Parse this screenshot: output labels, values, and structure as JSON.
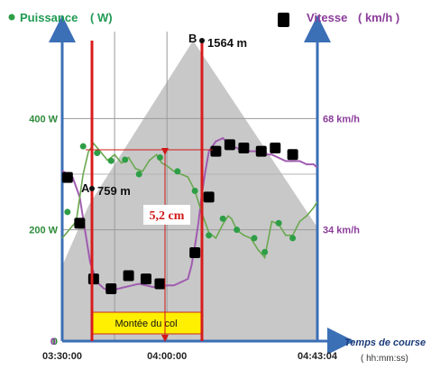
{
  "chart_data": {
    "type": "line",
    "title": "",
    "xlabel": "Temps de course",
    "xlabel_unit": "( hh:mm:ss)",
    "x_ticks": [
      "03:30:00",
      "04:00:00",
      "04:43:04"
    ],
    "x_tick_minutes": [
      0,
      30,
      73.07
    ],
    "xlim_minutes": [
      0,
      73.07
    ],
    "left_axis": {
      "label": "Puissance",
      "unit": "( W)",
      "ticks": [
        "0",
        "200 W",
        "400 W"
      ],
      "tick_values": [
        0,
        200,
        400
      ],
      "ylim": [
        0,
        540
      ],
      "color": "#2e9e46"
    },
    "right_axis": {
      "label": "Vitesse",
      "unit": "( km/h )",
      "ticks": [
        "0",
        "34 km/h",
        "68 km/h"
      ],
      "tick_values": [
        0,
        34,
        68
      ],
      "ylim": [
        0,
        91.8
      ],
      "color": "#8b3c9b"
    },
    "series": [
      {
        "name": "Puissance",
        "axis": "left",
        "color": "#6aa84f",
        "x": [
          0,
          2,
          4,
          6,
          7.5,
          9,
          11,
          13,
          15,
          17,
          19,
          21,
          23,
          25,
          27,
          28.5,
          30,
          32,
          34,
          36,
          38,
          40,
          42,
          44,
          46,
          47.5,
          48.5,
          50,
          52,
          54,
          56,
          58,
          60,
          62,
          64,
          66,
          68,
          70,
          72,
          73
        ],
        "values": [
          185,
          200,
          215,
          300,
          340,
          355,
          340,
          325,
          335,
          320,
          330,
          310,
          305,
          325,
          335,
          320,
          315,
          305,
          300,
          295,
          270,
          230,
          195,
          185,
          210,
          225,
          220,
          200,
          190,
          185,
          165,
          150,
          215,
          210,
          190,
          190,
          215,
          225,
          240,
          250
        ]
      },
      {
        "name": "Vitesse",
        "axis": "right",
        "color": "#a05cb0",
        "x": [
          0,
          3,
          5,
          6.5,
          8,
          10,
          12,
          14,
          16,
          18,
          20,
          22,
          24,
          26,
          28,
          30,
          31,
          32,
          33,
          34,
          35,
          36,
          37,
          38,
          39,
          40,
          41,
          42,
          44,
          46,
          48,
          50,
          52,
          54,
          56,
          58,
          60,
          62,
          64,
          66,
          68,
          70,
          72,
          73
        ],
        "values": [
          52,
          50,
          44,
          34,
          24,
          18,
          16,
          15.5,
          16,
          16.5,
          17,
          17.5,
          17,
          16.5,
          16.5,
          17,
          17,
          17,
          17.5,
          18,
          18.5,
          19,
          23,
          29,
          36,
          45,
          52,
          58,
          61,
          62,
          60,
          59,
          58,
          58,
          58,
          57,
          57,
          56,
          55,
          55,
          55,
          54,
          54,
          53
        ]
      }
    ],
    "markers_puissance": [
      [
        1.5,
        232
      ],
      [
        6,
        350
      ],
      [
        10,
        338
      ],
      [
        14,
        324
      ],
      [
        18,
        326
      ],
      [
        22,
        300
      ],
      [
        28,
        330
      ],
      [
        33,
        305
      ],
      [
        38,
        270
      ],
      [
        42,
        190
      ],
      [
        46,
        220
      ],
      [
        50,
        200
      ],
      [
        55,
        185
      ],
      [
        58,
        160
      ],
      [
        62,
        212
      ],
      [
        66,
        185
      ]
    ],
    "markers_vitesse": [
      [
        1.5,
        50
      ],
      [
        5,
        36
      ],
      [
        9,
        19
      ],
      [
        14,
        16
      ],
      [
        19,
        20
      ],
      [
        24,
        19
      ],
      [
        28,
        17.5
      ],
      [
        38,
        27
      ],
      [
        42,
        44
      ],
      [
        44,
        58
      ],
      [
        48,
        60
      ],
      [
        52,
        59
      ],
      [
        57,
        58
      ],
      [
        61,
        59
      ],
      [
        66,
        57
      ]
    ],
    "elevation_profile": {
      "x": [
        0,
        0,
        7.5,
        37.5,
        73,
        73
      ],
      "values": [
        0,
        0.25,
        0.45,
        1.0,
        0.38,
        0
      ]
    },
    "annotations": {
      "point_a": {
        "letter": "A",
        "text": "759 m",
        "x": 7.5
      },
      "point_b": {
        "letter": "B",
        "text": "1564 m",
        "x": 37.5
      },
      "measure": "5,2 cm",
      "section": "Montée du col",
      "section_x_range": [
        7.5,
        37.5
      ]
    },
    "legend": {
      "left": "top-left",
      "right": "top-right"
    },
    "grid": true,
    "colors": {
      "axis_blue": "#3b6fb6",
      "vertical_red": "#d81c1c",
      "elevation_fill": "#c8c8c8",
      "section_fill": "#ffef00",
      "marker_green": "#2e9e46",
      "marker_black": "#000000"
    }
  }
}
